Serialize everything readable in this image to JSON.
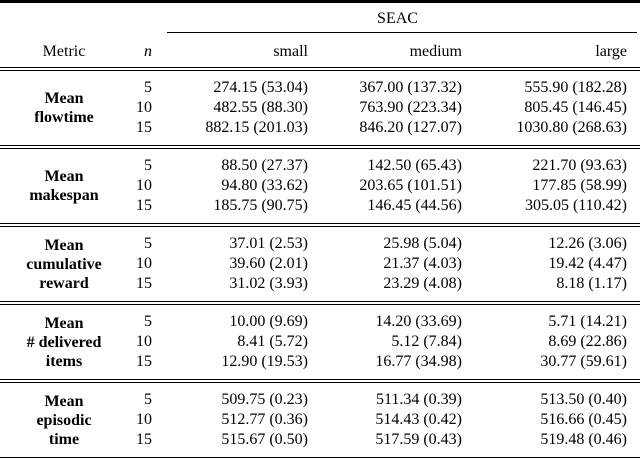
{
  "colors": {
    "text": "#000000",
    "background": "#ffffff",
    "rule": "#000000"
  },
  "table": {
    "group_header": "SEAC",
    "headers": {
      "metric": "Metric",
      "n": "n",
      "small": "small",
      "medium": "medium",
      "large": "large"
    },
    "sections": [
      {
        "label": "Mean\nflowtime",
        "rows": [
          {
            "n": "5",
            "small": "274.15 (53.04)",
            "medium": "367.00 (137.32)",
            "large": "555.90 (182.28)"
          },
          {
            "n": "10",
            "small": "482.55 (88.30)",
            "medium": "763.90 (223.34)",
            "large": "805.45 (146.45)"
          },
          {
            "n": "15",
            "small": "882.15 (201.03)",
            "medium": "846.20 (127.07)",
            "large": "1030.80 (268.63)"
          }
        ]
      },
      {
        "label": "Mean\nmakespan",
        "rows": [
          {
            "n": "5",
            "small": "88.50 (27.37)",
            "medium": "142.50 (65.43)",
            "large": "221.70 (93.63)"
          },
          {
            "n": "10",
            "small": "94.80 (33.62)",
            "medium": "203.65 (101.51)",
            "large": "177.85 (58.99)"
          },
          {
            "n": "15",
            "small": "185.75 (90.75)",
            "medium": "146.45 (44.56)",
            "large": "305.05 (110.42)"
          }
        ]
      },
      {
        "label": "Mean\ncumulative\nreward",
        "rows": [
          {
            "n": "5",
            "small": "37.01 (2.53)",
            "medium": "25.98 (5.04)",
            "large": "12.26 (3.06)"
          },
          {
            "n": "10",
            "small": "39.60 (2.01)",
            "medium": "21.37 (4.03)",
            "large": "19.42 (4.47)"
          },
          {
            "n": "15",
            "small": "31.02 (3.93)",
            "medium": "23.29 (4.08)",
            "large": "8.18 (1.17)"
          }
        ]
      },
      {
        "label": "Mean\n# delivered\nitems",
        "rows": [
          {
            "n": "5",
            "small": "10.00 (9.69)",
            "medium": "14.20 (33.69)",
            "large": "5.71 (14.21)"
          },
          {
            "n": "10",
            "small": "8.41 (5.72)",
            "medium": "5.12 (7.84)",
            "large": "8.69 (22.86)"
          },
          {
            "n": "15",
            "small": "12.90 (19.53)",
            "medium": "16.77 (34.98)",
            "large": "30.77 (59.61)"
          }
        ]
      },
      {
        "label": "Mean\nepisodic\ntime",
        "rows": [
          {
            "n": "5",
            "small": "509.75 (0.23)",
            "medium": "511.34 (0.39)",
            "large": "513.50 (0.40)"
          },
          {
            "n": "10",
            "small": "512.77 (0.36)",
            "medium": "514.43 (0.42)",
            "large": "516.66 (0.45)"
          },
          {
            "n": "15",
            "small": "515.67 (0.50)",
            "medium": "517.59 (0.43)",
            "large": "519.48 (0.46)"
          }
        ]
      }
    ]
  }
}
